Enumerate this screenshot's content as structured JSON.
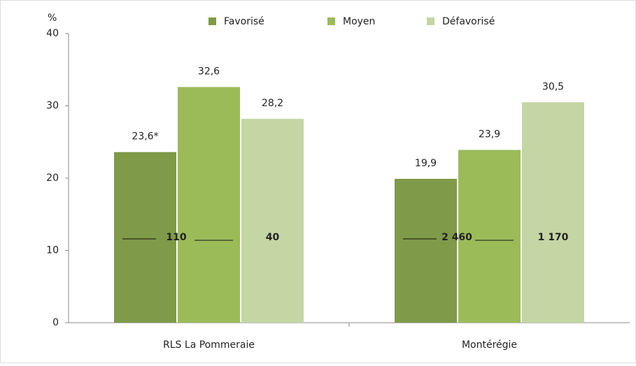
{
  "chart_data": {
    "type": "bar",
    "y_label": "%",
    "categories": [
      "RLS La Pommeraie",
      "Montérégie"
    ],
    "series": [
      {
        "name": "Favorisé",
        "color": "#7f9a48",
        "values": [
          23.6,
          19.9
        ],
        "value_labels": [
          "23,6*",
          "19,9"
        ]
      },
      {
        "name": "Moyen",
        "color": "#9bbb59",
        "values": [
          32.6,
          23.9
        ],
        "value_labels": [
          "32,6",
          "23,9"
        ]
      },
      {
        "name": "Défavorisé",
        "color": "#c4d6a4",
        "values": [
          28.2,
          30.5
        ],
        "value_labels": [
          "28,2",
          "30,5"
        ]
      }
    ],
    "annotations": [
      [
        "110",
        "40"
      ],
      [
        "2 460",
        "1 170"
      ]
    ],
    "ylim": [
      0,
      40
    ],
    "yticks": [
      0,
      10,
      20,
      30,
      40
    ]
  }
}
